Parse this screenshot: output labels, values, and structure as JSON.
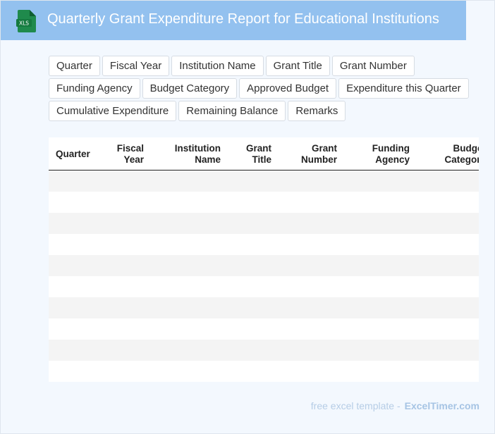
{
  "header": {
    "icon": "xls-file-icon",
    "icon_label": "XLS",
    "title": "Quarterly Grant Expenditure Report for Educational Institutions",
    "background": "#93c1ef"
  },
  "tags": [
    "Quarter",
    "Fiscal Year",
    "Institution Name",
    "Grant Title",
    "Grant Number",
    "Funding Agency",
    "Budget Category",
    "Approved Budget",
    "Expenditure this Quarter",
    "Cumulative Expenditure",
    "Remaining Balance",
    "Remarks"
  ],
  "table": {
    "columns": [
      "Quarter",
      "Fiscal\nYear",
      "Institution\nName",
      "Grant\nTitle",
      "Grant\nNumber",
      "Funding\nAgency",
      "Budget\nCategory"
    ],
    "row_count": 10,
    "stripe_color": "#f4f4f4"
  },
  "footer": {
    "text": "free excel template -",
    "brand": "ExcelTimer.com"
  }
}
